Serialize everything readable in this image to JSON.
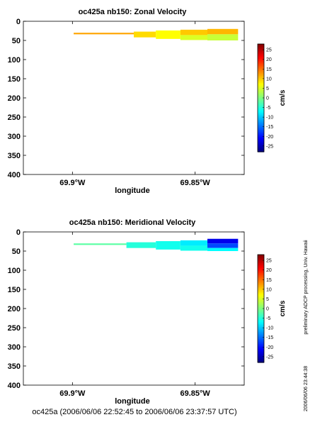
{
  "chart_data": [
    {
      "type": "heatmap",
      "title": "oc425a nb150: Zonal Velocity",
      "xlabel": "longitude",
      "ylabel": "",
      "xlim": [
        -69.92,
        -69.83
      ],
      "ylim": [
        400,
        0
      ],
      "x_ticks": [
        -69.9,
        -69.85
      ],
      "x_tick_labels": [
        "69.9°W",
        "69.85°W"
      ],
      "y_ticks": [
        0,
        50,
        100,
        150,
        200,
        250,
        300,
        350,
        400
      ],
      "y_tick_labels": [
        "0",
        "50",
        "100",
        "150",
        "200",
        "250",
        "300",
        "350",
        "400"
      ],
      "colorbar": {
        "label": "cm/s",
        "range": [
          -28,
          28
        ],
        "ticks": [
          25,
          20,
          15,
          10,
          5,
          0,
          -5,
          -10,
          -15,
          -20,
          -25
        ]
      },
      "cells": [
        {
          "lon_start": -69.8995,
          "lon_end": -69.875,
          "depth_top": 30,
          "depth_bottom": 34,
          "value": 12
        },
        {
          "lon_start": -69.875,
          "lon_end": -69.866,
          "depth_top": 27,
          "depth_bottom": 42,
          "value": 9
        },
        {
          "lon_start": -69.866,
          "lon_end": -69.856,
          "depth_top": 24,
          "depth_bottom": 46,
          "value": 7
        },
        {
          "lon_start": -69.856,
          "lon_end": -69.845,
          "depth_top": 22,
          "depth_bottom": 36,
          "value": 10
        },
        {
          "lon_start": -69.856,
          "lon_end": -69.845,
          "depth_top": 36,
          "depth_bottom": 49,
          "value": 5
        },
        {
          "lon_start": -69.845,
          "lon_end": -69.8325,
          "depth_top": 20,
          "depth_bottom": 34,
          "value": 11
        },
        {
          "lon_start": -69.845,
          "lon_end": -69.8325,
          "depth_top": 34,
          "depth_bottom": 50,
          "value": 4
        }
      ]
    },
    {
      "type": "heatmap",
      "title": "oc425a nb150: Meridional Velocity",
      "xlabel": "longitude",
      "ylabel": "",
      "xlim": [
        -69.92,
        -69.83
      ],
      "ylim": [
        400,
        0
      ],
      "x_ticks": [
        -69.9,
        -69.85
      ],
      "x_tick_labels": [
        "69.9°W",
        "69.85°W"
      ],
      "y_ticks": [
        0,
        50,
        100,
        150,
        200,
        250,
        300,
        350,
        400
      ],
      "y_tick_labels": [
        "0",
        "50",
        "100",
        "150",
        "200",
        "250",
        "300",
        "350",
        "400"
      ],
      "colorbar": {
        "label": "cm/s",
        "range": [
          -28,
          28
        ],
        "ticks": [
          25,
          20,
          15,
          10,
          5,
          0,
          -5,
          -10,
          -15,
          -20,
          -25
        ]
      },
      "cells": [
        {
          "lon_start": -69.8995,
          "lon_end": -69.878,
          "depth_top": 30,
          "depth_bottom": 34,
          "value": -2
        },
        {
          "lon_start": -69.878,
          "lon_end": -69.866,
          "depth_top": 27,
          "depth_bottom": 42,
          "value": -5
        },
        {
          "lon_start": -69.866,
          "lon_end": -69.856,
          "depth_top": 24,
          "depth_bottom": 46,
          "value": -6
        },
        {
          "lon_start": -69.856,
          "lon_end": -69.845,
          "depth_top": 22,
          "depth_bottom": 36,
          "value": -8
        },
        {
          "lon_start": -69.856,
          "lon_end": -69.845,
          "depth_top": 36,
          "depth_bottom": 49,
          "value": -6
        },
        {
          "lon_start": -69.845,
          "lon_end": -69.8325,
          "depth_top": 18,
          "depth_bottom": 30,
          "value": -22
        },
        {
          "lon_start": -69.845,
          "lon_end": -69.8325,
          "depth_top": 30,
          "depth_bottom": 42,
          "value": -17
        },
        {
          "lon_start": -69.845,
          "lon_end": -69.8325,
          "depth_top": 42,
          "depth_bottom": 50,
          "value": -7
        }
      ]
    }
  ],
  "side_text": {
    "processing": "preliminary ADCP processing,   Univ. Hawaii",
    "timestamp": "2006/06/06 23:44:38"
  },
  "footer": "oc425a (2006/06/06 22:52:45 to 2006/06/06 23:37:57 UTC)"
}
